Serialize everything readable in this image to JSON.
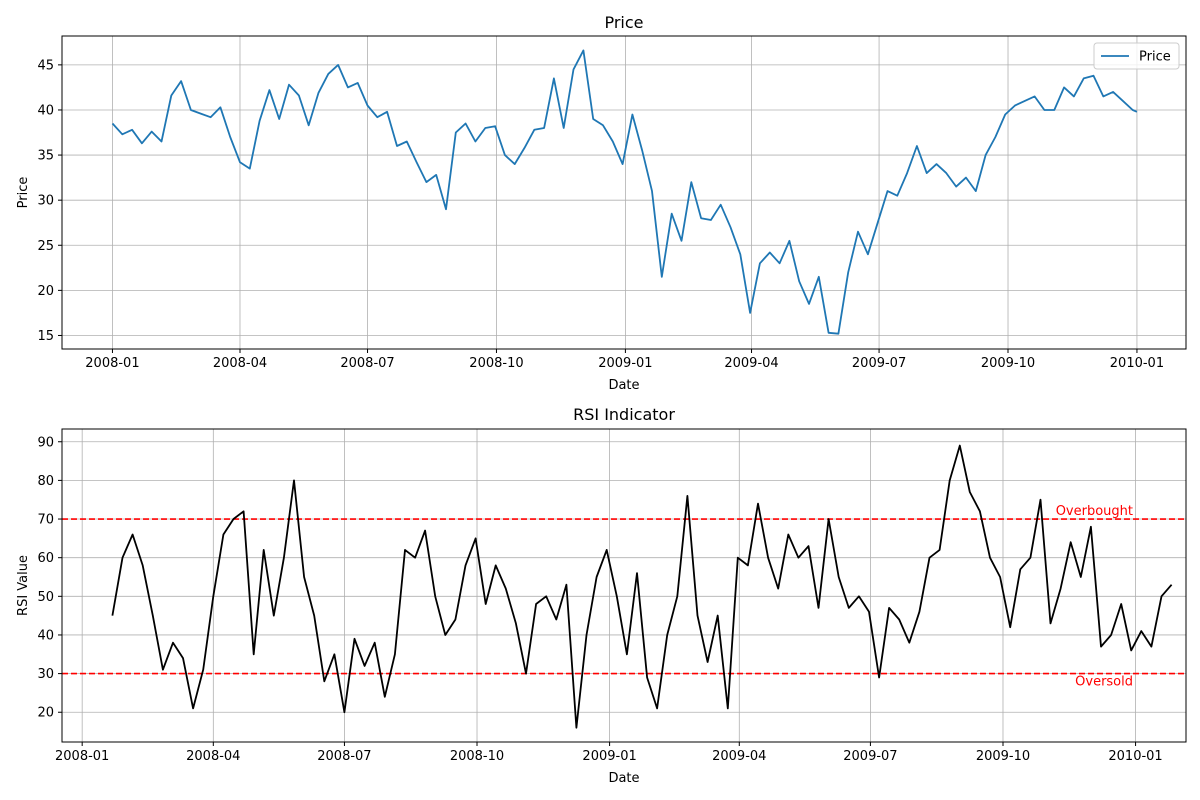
{
  "figure": {
    "background": "#ffffff"
  },
  "chart_data": [
    {
      "type": "line",
      "title": "Price",
      "xlabel": "Date",
      "ylabel": "Price",
      "x_type": "date",
      "xlim": [
        "2007-11-26",
        "2010-02-05"
      ],
      "ylim": [
        13.5,
        48.2
      ],
      "xticks": [
        "2008-01",
        "2008-04",
        "2008-07",
        "2008-10",
        "2009-01",
        "2009-04",
        "2009-07",
        "2009-10",
        "2010-01"
      ],
      "yticks": [
        15,
        20,
        25,
        30,
        35,
        40,
        45
      ],
      "grid": true,
      "legend": {
        "position": "top-right",
        "entries": [
          "Price"
        ]
      },
      "series": [
        {
          "name": "Price",
          "color": "#1f77b4",
          "points": [
            [
              "2008-01-01",
              38.5
            ],
            [
              "2008-01-08",
              37.3
            ],
            [
              "2008-01-15",
              37.8
            ],
            [
              "2008-01-22",
              36.3
            ],
            [
              "2008-01-29",
              37.6
            ],
            [
              "2008-02-05",
              36.5
            ],
            [
              "2008-02-12",
              41.6
            ],
            [
              "2008-02-19",
              43.2
            ],
            [
              "2008-02-26",
              40.0
            ],
            [
              "2008-03-04",
              39.6
            ],
            [
              "2008-03-11",
              39.2
            ],
            [
              "2008-03-18",
              40.3
            ],
            [
              "2008-03-25",
              37.0
            ],
            [
              "2008-04-01",
              34.2
            ],
            [
              "2008-04-08",
              33.5
            ],
            [
              "2008-04-15",
              38.8
            ],
            [
              "2008-04-22",
              42.2
            ],
            [
              "2008-04-29",
              39.0
            ],
            [
              "2008-05-06",
              42.8
            ],
            [
              "2008-05-13",
              41.6
            ],
            [
              "2008-05-20",
              38.3
            ],
            [
              "2008-05-27",
              41.9
            ],
            [
              "2008-06-03",
              44.0
            ],
            [
              "2008-06-10",
              45.0
            ],
            [
              "2008-06-17",
              42.5
            ],
            [
              "2008-06-24",
              43.0
            ],
            [
              "2008-07-01",
              40.5
            ],
            [
              "2008-07-08",
              39.2
            ],
            [
              "2008-07-15",
              39.8
            ],
            [
              "2008-07-22",
              36.0
            ],
            [
              "2008-07-29",
              36.5
            ],
            [
              "2008-08-05",
              34.2
            ],
            [
              "2008-08-12",
              32.0
            ],
            [
              "2008-08-19",
              32.8
            ],
            [
              "2008-08-26",
              29.0
            ],
            [
              "2008-09-02",
              37.5
            ],
            [
              "2008-09-09",
              38.5
            ],
            [
              "2008-09-16",
              36.5
            ],
            [
              "2008-09-23",
              38.0
            ],
            [
              "2008-09-30",
              38.2
            ],
            [
              "2008-10-07",
              35.0
            ],
            [
              "2008-10-14",
              34.0
            ],
            [
              "2008-10-21",
              35.8
            ],
            [
              "2008-10-28",
              37.8
            ],
            [
              "2008-11-04",
              38.0
            ],
            [
              "2008-11-11",
              43.5
            ],
            [
              "2008-11-18",
              38.0
            ],
            [
              "2008-11-25",
              44.5
            ],
            [
              "2008-12-02",
              46.6
            ],
            [
              "2008-12-09",
              39.0
            ],
            [
              "2008-12-16",
              38.3
            ],
            [
              "2008-12-23",
              36.5
            ],
            [
              "2008-12-30",
              34.0
            ],
            [
              "2009-01-06",
              39.5
            ],
            [
              "2009-01-13",
              35.5
            ],
            [
              "2009-01-20",
              31.0
            ],
            [
              "2009-01-27",
              21.5
            ],
            [
              "2009-02-03",
              28.5
            ],
            [
              "2009-02-10",
              25.5
            ],
            [
              "2009-02-17",
              32.0
            ],
            [
              "2009-02-24",
              28.0
            ],
            [
              "2009-03-03",
              27.8
            ],
            [
              "2009-03-10",
              29.5
            ],
            [
              "2009-03-17",
              27.0
            ],
            [
              "2009-03-24",
              24.0
            ],
            [
              "2009-03-31",
              17.5
            ],
            [
              "2009-04-07",
              23.0
            ],
            [
              "2009-04-14",
              24.2
            ],
            [
              "2009-04-21",
              23.0
            ],
            [
              "2009-04-28",
              25.5
            ],
            [
              "2009-05-05",
              21.0
            ],
            [
              "2009-05-12",
              18.5
            ],
            [
              "2009-05-19",
              21.5
            ],
            [
              "2009-05-26",
              15.3
            ],
            [
              "2009-06-02",
              15.2
            ],
            [
              "2009-06-09",
              22.0
            ],
            [
              "2009-06-16",
              26.5
            ],
            [
              "2009-06-23",
              24.0
            ],
            [
              "2009-06-30",
              27.5
            ],
            [
              "2009-07-07",
              31.0
            ],
            [
              "2009-07-14",
              30.5
            ],
            [
              "2009-07-21",
              33.0
            ],
            [
              "2009-07-28",
              36.0
            ],
            [
              "2009-08-04",
              33.0
            ],
            [
              "2009-08-11",
              34.0
            ],
            [
              "2009-08-18",
              33.0
            ],
            [
              "2009-08-25",
              31.5
            ],
            [
              "2009-09-01",
              32.5
            ],
            [
              "2009-09-08",
              31.0
            ],
            [
              "2009-09-15",
              35.0
            ],
            [
              "2009-09-22",
              37.0
            ],
            [
              "2009-09-29",
              39.5
            ],
            [
              "2009-10-06",
              40.5
            ],
            [
              "2009-10-13",
              41.0
            ],
            [
              "2009-10-20",
              41.5
            ],
            [
              "2009-10-27",
              40.0
            ],
            [
              "2009-11-03",
              40.0
            ],
            [
              "2009-11-10",
              42.5
            ],
            [
              "2009-11-17",
              41.5
            ],
            [
              "2009-11-24",
              43.5
            ],
            [
              "2009-12-01",
              43.8
            ],
            [
              "2009-12-08",
              41.5
            ],
            [
              "2009-12-15",
              42.0
            ],
            [
              "2009-12-22",
              41.0
            ],
            [
              "2009-12-29",
              40.0
            ],
            [
              "2010-01-01",
              39.8
            ]
          ]
        }
      ]
    },
    {
      "type": "line",
      "title": "RSI Indicator",
      "xlabel": "Date",
      "ylabel": "RSI Value",
      "x_type": "date",
      "xlim": [
        "2007-12-18",
        "2010-02-05"
      ],
      "ylim": [
        12.3,
        93.3
      ],
      "xticks": [
        "2008-01",
        "2008-04",
        "2008-07",
        "2008-10",
        "2009-01",
        "2009-04",
        "2009-07",
        "2009-10",
        "2010-01"
      ],
      "yticks": [
        20,
        30,
        40,
        50,
        60,
        70,
        80,
        90
      ],
      "grid": true,
      "reference_lines": [
        {
          "y": 70,
          "color": "#ff0000",
          "style": "dashed",
          "label": "Overbought"
        },
        {
          "y": 30,
          "color": "#ff0000",
          "style": "dashed",
          "label": "Oversold"
        }
      ],
      "series": [
        {
          "color": "#000000",
          "points": [
            [
              "2008-01-22",
              45.0
            ],
            [
              "2008-01-29",
              60.0
            ],
            [
              "2008-02-05",
              66.0
            ],
            [
              "2008-02-12",
              58.0
            ],
            [
              "2008-02-19",
              45.0
            ],
            [
              "2008-02-26",
              31.0
            ],
            [
              "2008-03-04",
              38.0
            ],
            [
              "2008-03-11",
              34.0
            ],
            [
              "2008-03-18",
              21.0
            ],
            [
              "2008-03-25",
              31.0
            ],
            [
              "2008-04-01",
              50.0
            ],
            [
              "2008-04-08",
              66.0
            ],
            [
              "2008-04-15",
              70.0
            ],
            [
              "2008-04-22",
              72.0
            ],
            [
              "2008-04-29",
              35.0
            ],
            [
              "2008-05-06",
              62.0
            ],
            [
              "2008-05-13",
              45.0
            ],
            [
              "2008-05-20",
              60.0
            ],
            [
              "2008-05-27",
              80.0
            ],
            [
              "2008-06-03",
              55.0
            ],
            [
              "2008-06-10",
              45.0
            ],
            [
              "2008-06-17",
              28.0
            ],
            [
              "2008-06-24",
              35.0
            ],
            [
              "2008-07-01",
              20.0
            ],
            [
              "2008-07-08",
              39.0
            ],
            [
              "2008-07-15",
              32.0
            ],
            [
              "2008-07-22",
              38.0
            ],
            [
              "2008-07-29",
              24.0
            ],
            [
              "2008-08-05",
              35.0
            ],
            [
              "2008-08-12",
              62.0
            ],
            [
              "2008-08-19",
              60.0
            ],
            [
              "2008-08-26",
              67.0
            ],
            [
              "2008-09-02",
              50.0
            ],
            [
              "2008-09-09",
              40.0
            ],
            [
              "2008-09-16",
              44.0
            ],
            [
              "2008-09-23",
              58.0
            ],
            [
              "2008-09-30",
              65.0
            ],
            [
              "2008-10-07",
              48.0
            ],
            [
              "2008-10-14",
              58.0
            ],
            [
              "2008-10-21",
              52.0
            ],
            [
              "2008-10-28",
              43.0
            ],
            [
              "2008-11-04",
              30.0
            ],
            [
              "2008-11-11",
              48.0
            ],
            [
              "2008-11-18",
              50.0
            ],
            [
              "2008-11-25",
              44.0
            ],
            [
              "2008-12-02",
              53.0
            ],
            [
              "2008-12-09",
              16.0
            ],
            [
              "2008-12-16",
              40.0
            ],
            [
              "2008-12-23",
              55.0
            ],
            [
              "2008-12-30",
              62.0
            ],
            [
              "2009-01-06",
              50.0
            ],
            [
              "2009-01-13",
              35.0
            ],
            [
              "2009-01-20",
              56.0
            ],
            [
              "2009-01-27",
              29.0
            ],
            [
              "2009-02-03",
              21.0
            ],
            [
              "2009-02-10",
              40.0
            ],
            [
              "2009-02-17",
              50.0
            ],
            [
              "2009-02-24",
              76.0
            ],
            [
              "2009-03-03",
              45.0
            ],
            [
              "2009-03-10",
              33.0
            ],
            [
              "2009-03-17",
              45.0
            ],
            [
              "2009-03-24",
              21.0
            ],
            [
              "2009-03-31",
              60.0
            ],
            [
              "2009-04-07",
              58.0
            ],
            [
              "2009-04-14",
              74.0
            ],
            [
              "2009-04-21",
              60.0
            ],
            [
              "2009-04-28",
              52.0
            ],
            [
              "2009-05-05",
              66.0
            ],
            [
              "2009-05-12",
              60.0
            ],
            [
              "2009-05-19",
              63.0
            ],
            [
              "2009-05-26",
              47.0
            ],
            [
              "2009-06-02",
              70.0
            ],
            [
              "2009-06-09",
              55.0
            ],
            [
              "2009-06-16",
              47.0
            ],
            [
              "2009-06-23",
              50.0
            ],
            [
              "2009-06-30",
              46.0
            ],
            [
              "2009-07-07",
              29.0
            ],
            [
              "2009-07-14",
              47.0
            ],
            [
              "2009-07-21",
              44.0
            ],
            [
              "2009-07-28",
              38.0
            ],
            [
              "2009-08-04",
              46.0
            ],
            [
              "2009-08-11",
              60.0
            ],
            [
              "2009-08-18",
              62.0
            ],
            [
              "2009-08-25",
              80.0
            ],
            [
              "2009-09-01",
              89.0
            ],
            [
              "2009-09-08",
              77.0
            ],
            [
              "2009-09-15",
              72.0
            ],
            [
              "2009-09-22",
              60.0
            ],
            [
              "2009-09-29",
              55.0
            ],
            [
              "2009-10-06",
              42.0
            ],
            [
              "2009-10-13",
              57.0
            ],
            [
              "2009-10-20",
              60.0
            ],
            [
              "2009-10-27",
              75.0
            ],
            [
              "2009-11-03",
              43.0
            ],
            [
              "2009-11-10",
              52.0
            ],
            [
              "2009-11-17",
              64.0
            ],
            [
              "2009-11-24",
              55.0
            ],
            [
              "2009-12-01",
              68.0
            ],
            [
              "2009-12-08",
              37.0
            ],
            [
              "2009-12-15",
              40.0
            ],
            [
              "2009-12-22",
              48.0
            ],
            [
              "2009-12-29",
              36.0
            ],
            [
              "2010-01-05",
              41.0
            ],
            [
              "2010-01-12",
              37.0
            ],
            [
              "2010-01-19",
              50.0
            ],
            [
              "2010-01-26",
              53.0
            ]
          ]
        }
      ]
    }
  ]
}
